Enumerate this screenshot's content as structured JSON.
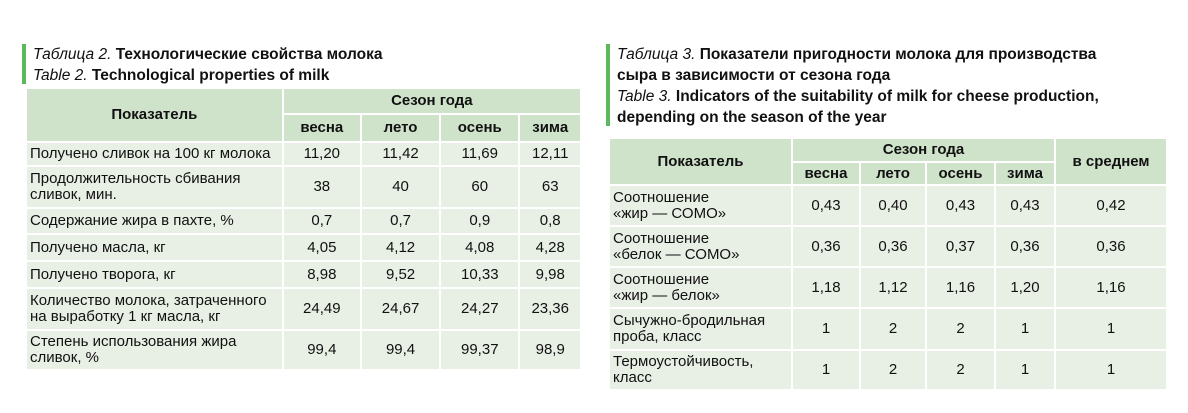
{
  "table2": {
    "caption_ru_label": "Таблица 2.",
    "caption_ru_title": "Технологические свойства молока",
    "caption_en_label": "Table 2.",
    "caption_en_title": "Technological properties of milk",
    "header_indicator": "Показатель",
    "header_season": "Сезон года",
    "seasons": [
      "весна",
      "лето",
      "осень",
      "зима"
    ],
    "rows": [
      {
        "label": "Получено сливок на 100 кг молока",
        "values": [
          "11,20",
          "11,42",
          "11,69",
          "12,11"
        ]
      },
      {
        "label": "Продолжительность сбивания сливок, мин.",
        "values": [
          "38",
          "40",
          "60",
          "63"
        ]
      },
      {
        "label": "Содержание жира в пахте, %",
        "values": [
          "0,7",
          "0,7",
          "0,9",
          "0,8"
        ]
      },
      {
        "label": "Получено масла, кг",
        "values": [
          "4,05",
          "4,12",
          "4,08",
          "4,28"
        ]
      },
      {
        "label": "Получено творога, кг",
        "values": [
          "8,98",
          "9,52",
          "10,33",
          "9,98"
        ]
      },
      {
        "label": "Количество молока, затраченного на выработку 1 кг масла, кг",
        "values": [
          "24,49",
          "24,67",
          "24,27",
          "23,36"
        ]
      },
      {
        "label": "Степень использования жира сливок, %",
        "values": [
          "99,4",
          "99,4",
          "99,37",
          "98,9"
        ]
      }
    ]
  },
  "table3": {
    "caption_ru_label": "Таблица 3.",
    "caption_ru_title_1": "Показатели пригодности молока для производства",
    "caption_ru_title_2": "сыра в зависимости от сезона года",
    "caption_en_label": "Table 3.",
    "caption_en_title_1": "Indicators of the suitability of milk for cheese production,",
    "caption_en_title_2": "depending on the season of the year",
    "header_indicator": "Показатель",
    "header_season": "Сезон года",
    "header_average": "в среднем",
    "seasons": [
      "весна",
      "лето",
      "осень",
      "зима"
    ],
    "rows": [
      {
        "label_1": "Соотношение",
        "label_2": "«жир — СОМО»",
        "values": [
          "0,43",
          "0,40",
          "0,43",
          "0,43"
        ],
        "average": "0,42"
      },
      {
        "label_1": "Соотношение",
        "label_2": "«белок — СОМО»",
        "values": [
          "0,36",
          "0,36",
          "0,37",
          "0,36"
        ],
        "average": "0,36"
      },
      {
        "label_1": "Соотношение",
        "label_2": "«жир — белок»",
        "values": [
          "1,18",
          "1,12",
          "1,16",
          "1,20"
        ],
        "average": "1,16"
      },
      {
        "label_1": "Сычужно-бродильная",
        "label_2": "проба, класс",
        "values": [
          "1",
          "2",
          "2",
          "1"
        ],
        "average": "1"
      },
      {
        "label_1": "Термоустойчивость,",
        "label_2": "класс",
        "values": [
          "1",
          "2",
          "2",
          "1"
        ],
        "average": "1"
      }
    ]
  },
  "colors": {
    "accent_bar": "#5cb85c",
    "header_bg": "#cfe2ca",
    "cell_bg": "#e8f0e5"
  }
}
